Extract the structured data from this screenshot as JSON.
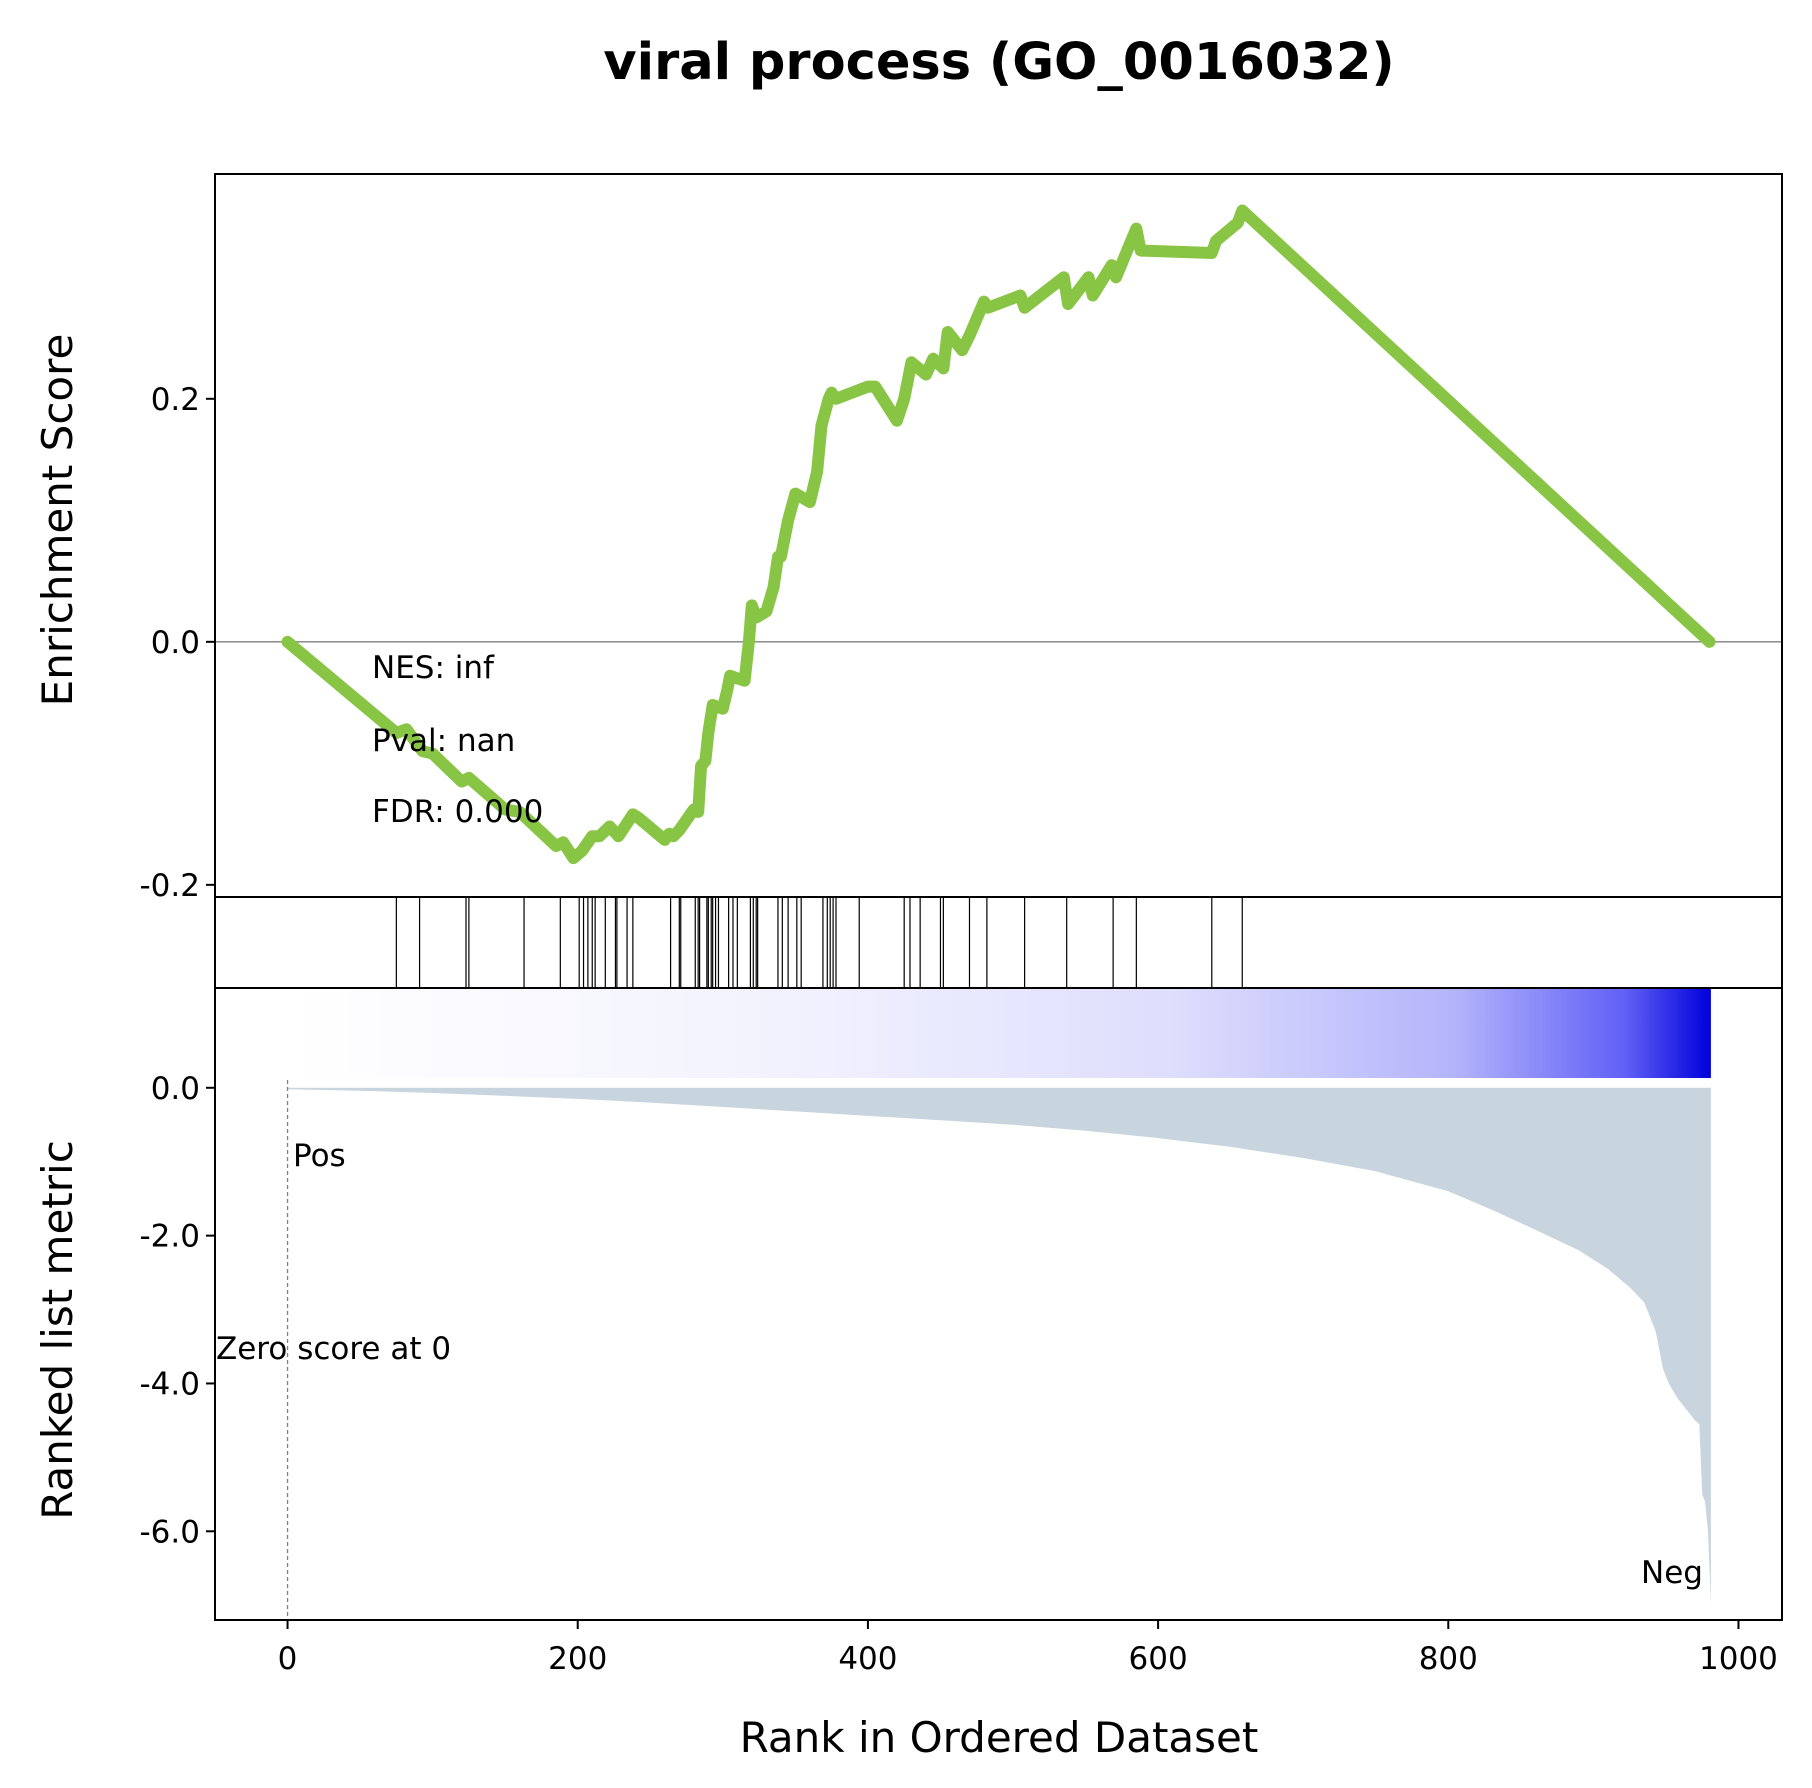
{
  "chart_data": {
    "type": "line",
    "title": "viral process (GO_0016032)",
    "xlabel": "Rank in Ordered Dataset",
    "xlim": [
      -50,
      1030
    ],
    "xticks": [
      0,
      200,
      400,
      600,
      800,
      1000
    ],
    "n_genes": 982,
    "grid": false,
    "enrichment": {
      "ylabel": "Enrichment Score",
      "ylim": [
        -0.21,
        0.385
      ],
      "yticks": [
        -0.2,
        0.0,
        0.2
      ],
      "ytick_labels": [
        "-0.2",
        "0.0",
        "0.2"
      ],
      "line_color": "#88c544",
      "x": [
        0,
        75,
        82,
        93,
        100,
        120,
        125,
        150,
        160,
        185,
        190,
        197,
        203,
        210,
        215,
        222,
        228,
        238,
        242,
        260,
        263,
        266,
        270,
        280,
        283,
        285,
        288,
        290,
        293,
        300,
        303,
        305,
        310,
        315,
        318,
        320,
        323,
        330,
        335,
        338,
        340,
        345,
        350,
        353,
        360,
        365,
        368,
        373,
        375,
        378,
        400,
        405,
        420,
        425,
        430,
        440,
        445,
        452,
        455,
        465,
        470,
        480,
        483,
        505,
        508,
        535,
        538,
        552,
        555,
        568,
        571,
        585,
        588,
        637,
        640,
        655,
        658,
        980
      ],
      "y": [
        0.0,
        -0.075,
        -0.072,
        -0.09,
        -0.092,
        -0.115,
        -0.112,
        -0.138,
        -0.14,
        -0.168,
        -0.165,
        -0.178,
        -0.172,
        -0.16,
        -0.16,
        -0.152,
        -0.16,
        -0.142,
        -0.145,
        -0.163,
        -0.158,
        -0.16,
        -0.155,
        -0.138,
        -0.14,
        -0.102,
        -0.098,
        -0.075,
        -0.052,
        -0.055,
        -0.04,
        -0.028,
        -0.03,
        -0.032,
        0.0,
        0.03,
        0.02,
        0.025,
        0.045,
        0.07,
        0.07,
        0.1,
        0.122,
        0.12,
        0.115,
        0.14,
        0.178,
        0.2,
        0.205,
        0.2,
        0.21,
        0.21,
        0.182,
        0.2,
        0.23,
        0.22,
        0.233,
        0.225,
        0.255,
        0.24,
        0.252,
        0.28,
        0.275,
        0.285,
        0.275,
        0.3,
        0.278,
        0.3,
        0.285,
        0.31,
        0.3,
        0.34,
        0.322,
        0.32,
        0.33,
        0.345,
        0.355,
        0.0
      ],
      "annotations": [
        "NES: inf",
        "Pval: nan",
        "FDR: 0.000"
      ]
    },
    "hits": [
      75,
      91,
      123,
      125,
      163,
      188,
      201,
      204,
      207,
      210,
      212,
      219,
      226,
      227,
      234,
      238,
      264,
      270,
      271,
      281,
      283,
      284,
      289,
      290,
      292,
      293,
      295,
      297,
      304,
      307,
      310,
      319,
      321,
      323,
      324,
      338,
      341,
      345,
      351,
      354,
      369,
      372,
      374,
      376,
      378,
      394,
      425,
      429,
      436,
      450,
      452,
      470,
      482,
      508,
      537,
      569,
      585,
      637,
      658
    ],
    "ranked_metric": {
      "ylabel": "Ranked list metric",
      "ylim": [
        -7.2,
        1.35
      ],
      "yticks": [
        0.0,
        -2.0,
        -4.0,
        -6.0
      ],
      "ytick_labels": [
        "0.0",
        "-2.0",
        "-4.0",
        "-6.0"
      ],
      "fill_color": "#c9d5de",
      "x": [
        0,
        50,
        100,
        150,
        200,
        250,
        300,
        350,
        400,
        450,
        500,
        550,
        600,
        650,
        700,
        750,
        800,
        830,
        860,
        890,
        910,
        925,
        935,
        943,
        948,
        952,
        958,
        962,
        966,
        970,
        973,
        975,
        977,
        979,
        981
      ],
      "y": [
        -0.02,
        -0.04,
        -0.07,
        -0.11,
        -0.15,
        -0.2,
        -0.26,
        -0.32,
        -0.38,
        -0.44,
        -0.5,
        -0.58,
        -0.68,
        -0.8,
        -0.95,
        -1.13,
        -1.4,
        -1.65,
        -1.92,
        -2.2,
        -2.45,
        -2.7,
        -2.9,
        -3.3,
        -3.8,
        -4.0,
        -4.2,
        -4.3,
        -4.4,
        -4.5,
        -4.55,
        -5.5,
        -5.6,
        -6.0,
        -7.0
      ],
      "labels": {
        "pos": "Pos",
        "neg": "Neg",
        "zero": "Zero score at 0"
      },
      "pos_color": "#ff0000",
      "neg_color": "#0000ff",
      "zero_rank": 0
    },
    "colorbar": {
      "low_color": "#ffffff",
      "high_color": "#0000dc"
    }
  }
}
